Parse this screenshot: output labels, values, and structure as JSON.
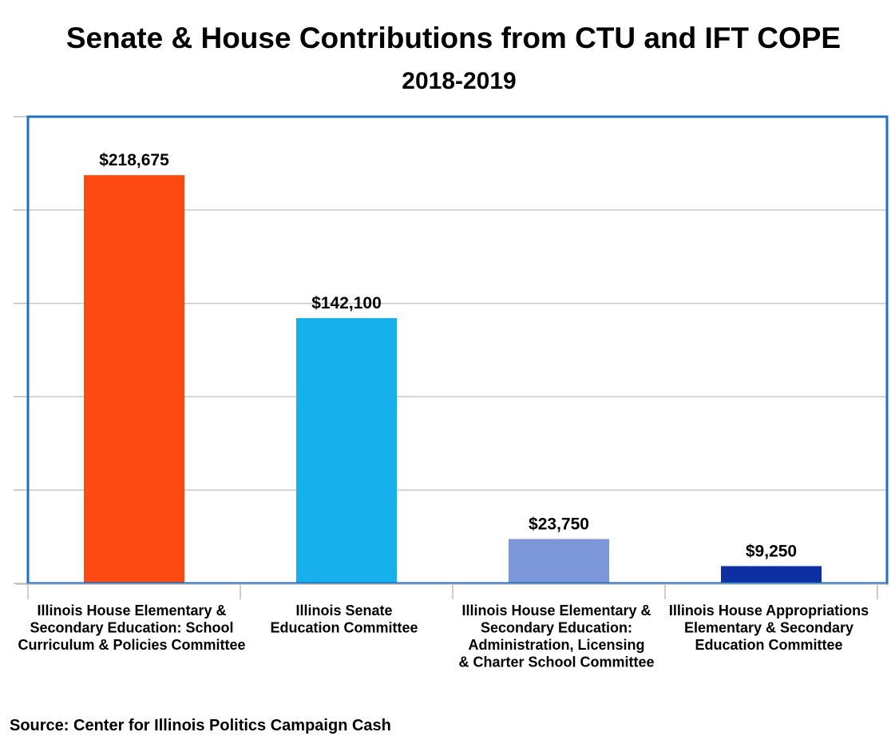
{
  "title": "Senate & House Contributions from CTU and IFT COPE",
  "subtitle": "2018-2019",
  "source": "Source: Center for Illinois Politics Campaign Cash",
  "colors": {
    "plot_border": "#1F6FC5",
    "grid": "#C8C8C8",
    "axis": "#BDBDBD",
    "bars": [
      "#FC4A12",
      "#18B0EC",
      "#7B97D9",
      "#0E2FA3"
    ]
  },
  "chart_data": {
    "type": "bar",
    "title": "Senate & House Contributions from CTU and IFT COPE",
    "subtitle": "2018-2019",
    "categories": [
      [
        "Illinois House Elementary &",
        "Secondary Education: School",
        "Curriculum & Policies Committee"
      ],
      [
        "Illinois Senate",
        "Education Committee"
      ],
      [
        "Illinois House Elementary &",
        "Secondary Education:",
        "Administration, Licensing",
        "& Charter School Committee"
      ],
      [
        "Illinois House Appropriations",
        "Elementary & Secondary",
        "Education Committee"
      ]
    ],
    "values": [
      218675,
      142100,
      23750,
      9250
    ],
    "data_labels": [
      "$218,675",
      "$142,100",
      "$23,750",
      "$9,250"
    ],
    "ylim": [
      0,
      250000
    ],
    "y_grid_step": 50000,
    "y_tick_labels_shown": false,
    "grid": true,
    "legend": "none",
    "xlabel": "",
    "ylabel": ""
  }
}
